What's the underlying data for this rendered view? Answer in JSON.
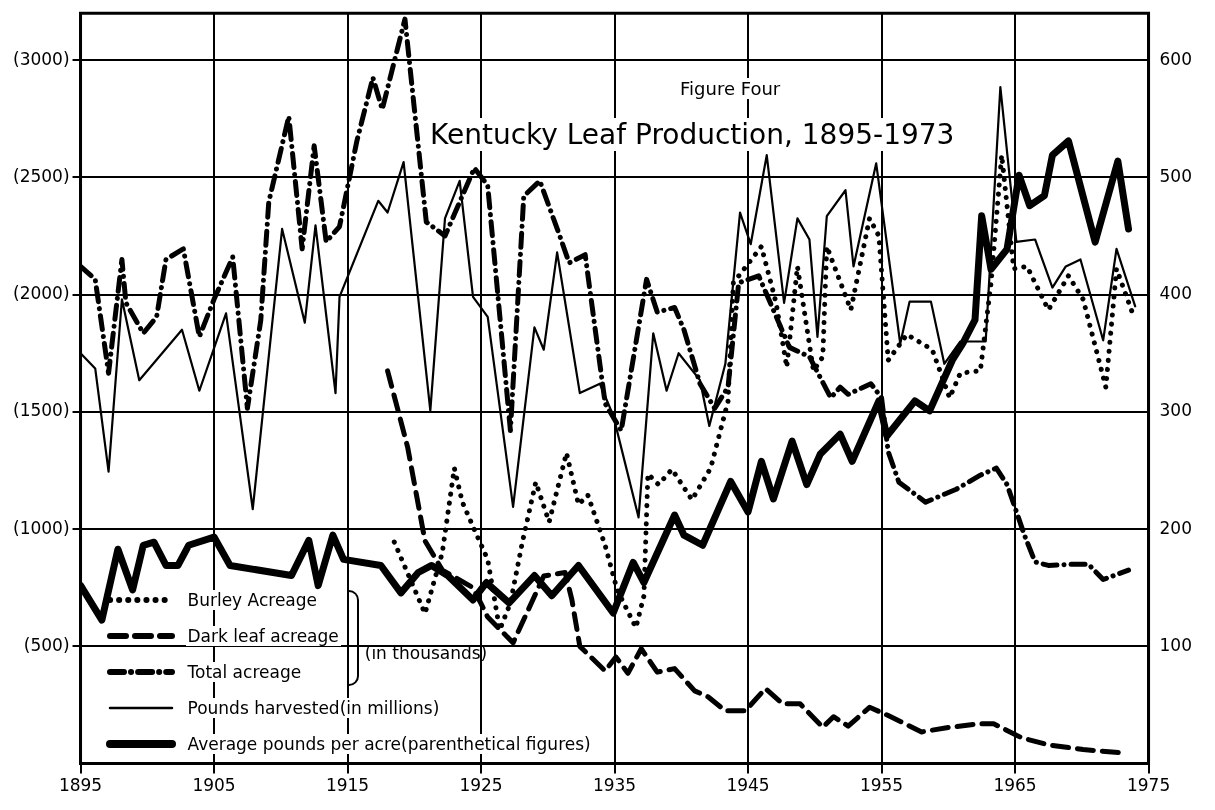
{
  "chart_data": {
    "type": "line",
    "title": "Kentucky Leaf Production, 1895-1973",
    "subtitle": "Figure Four",
    "annotations": [
      "(in thousands)"
    ],
    "xlim": [
      1895,
      1975
    ],
    "xticks": [
      1895,
      1905,
      1915,
      1925,
      1935,
      1945,
      1955,
      1965,
      1975
    ],
    "ylim": [
      0,
      3200
    ],
    "yticks": [
      {
        "value": 500,
        "label": "(500)"
      },
      {
        "value": 1000,
        "label": "(1000)"
      },
      {
        "value": 1500,
        "label": "(1500)"
      },
      {
        "value": 2000,
        "label": "(2000)"
      },
      {
        "value": 2500,
        "label": "(2500)"
      },
      {
        "value": 3000,
        "label": "(3000)"
      }
    ],
    "y2lim": [
      0,
      640
    ],
    "y2ticks": [
      100,
      200,
      300,
      400,
      500,
      600
    ],
    "grid": true,
    "legend": "bottom left",
    "marker": "none",
    "series": [
      {
        "name": "Burley Acreage",
        "color": "#000000",
        "axis": "y2",
        "line_style": "dotted",
        "x": [
          1918.5,
          1920.8,
          1922.1,
          1923.0,
          1923.6,
          1924.6,
          1925.5,
          1926.4,
          1927.2,
          1928.1,
          1929.1,
          1930.1,
          1931.4,
          1932.3,
          1933.0,
          1934.3,
          1935.2,
          1936.6,
          1937.2,
          1937.5,
          1938.3,
          1939.3,
          1940.8,
          1942.2,
          1943.5,
          1943.9,
          1946.0,
          1947.1,
          1947.9,
          1948.7,
          1949.9,
          1950.6,
          1950.9,
          1952.7,
          1954.1,
          1954.8,
          1955.5,
          1956.9,
          1958.8,
          1960.1,
          1960.9,
          1962.4,
          1963.2,
          1964.0,
          1964.9,
          1965.9,
          1967.5,
          1969.0,
          1970.1,
          1971.8,
          1972.6,
          1973.9
        ],
        "values": [
          189,
          128,
          180,
          252,
          223,
          197,
          174,
          114,
          137,
          189,
          240,
          206,
          265,
          221,
          229,
          186,
          148,
          116,
          143,
          247,
          238,
          251,
          225,
          252,
          309,
          410,
          441,
          393,
          338,
          424,
          335,
          347,
          441,
          387,
          465,
          450,
          344,
          366,
          353,
          312,
          333,
          335,
          410,
          519,
          422,
          424,
          387,
          416,
          396,
          321,
          422,
          381
        ]
      },
      {
        "name": "Dark leaf acreage",
        "color": "#000000",
        "axis": "y2",
        "line_style": "dashed",
        "x": [
          1918.0,
          1919.5,
          1920.8,
          1922.1,
          1924.4,
          1925.5,
          1927.4,
          1929.7,
          1931.3,
          1931.8,
          1932.4,
          1934.3,
          1935.1,
          1936.0,
          1937.0,
          1938.2,
          1939.5,
          1941.0,
          1942.0,
          1943.3,
          1944.8,
          1946.3,
          1947.6,
          1948.9,
          1950.6,
          1951.4,
          1952.5,
          1954.1,
          1955.5,
          1958.0,
          1960.1,
          1962.4,
          1963.4,
          1965.5,
          1967.5,
          1970.1,
          1973.2
        ],
        "values": [
          335,
          270,
          190,
          165,
          150,
          125,
          103,
          160,
          163,
          140,
          100,
          79,
          91,
          77,
          98,
          78,
          81,
          62,
          57,
          45,
          45,
          64,
          51,
          51,
          31,
          40,
          32,
          48,
          41,
          27,
          31,
          34,
          34,
          22,
          16,
          12,
          9
        ]
      },
      {
        "name": "Total acreage",
        "color": "#000000",
        "axis": "y2",
        "line_style": "dashdot",
        "x": [
          1895.0,
          1896.1,
          1897.1,
          1898.1,
          1898.4,
          1899.7,
          1900.7,
          1901.4,
          1902.7,
          1903.9,
          1905.0,
          1906.4,
          1907.5,
          1908.5,
          1909.1,
          1910.6,
          1911.6,
          1912.5,
          1913.4,
          1914.4,
          1915.7,
          1916.9,
          1917.6,
          1919.3,
          1920.0,
          1920.9,
          1922.3,
          1924.5,
          1925.5,
          1927.2,
          1928.2,
          1929.4,
          1930.9,
          1931.6,
          1932.8,
          1934.3,
          1935.5,
          1937.4,
          1938.2,
          1939.5,
          1940.2,
          1941.4,
          1942.5,
          1943.5,
          1944.3,
          1945.8,
          1948.1,
          1949.6,
          1951.2,
          1951.9,
          1952.5,
          1954.2,
          1955.0,
          1955.5,
          1956.3,
          1958.3,
          1960.6,
          1962.4,
          1963.6,
          1964.4,
          1965.7,
          1966.5,
          1967.5,
          1969.3,
          1970.5,
          1971.6,
          1973.5
        ],
        "values": [
          424,
          413,
          333,
          430,
          393,
          367,
          381,
          430,
          439,
          364,
          396,
          432,
          303,
          378,
          479,
          552,
          439,
          527,
          445,
          458,
          531,
          585,
          558,
          635,
          559,
          462,
          450,
          508,
          493,
          284,
          484,
          497,
          450,
          427,
          434,
          307,
          284,
          413,
          385,
          389,
          370,
          324,
          303,
          321,
          410,
          416,
          355,
          347,
          312,
          321,
          315,
          324,
          312,
          266,
          240,
          223,
          234,
          246,
          252,
          238,
          195,
          172,
          169,
          170,
          170,
          157,
          165
        ]
      },
      {
        "name": "Pounds harvested(in millions)",
        "color": "#000000",
        "axis": "y2",
        "line_style": "solid",
        "x": [
          1895.0,
          1896.1,
          1897.1,
          1898.1,
          1899.4,
          1902.6,
          1903.9,
          1905.9,
          1907.9,
          1910.1,
          1911.8,
          1912.6,
          1914.1,
          1914.4,
          1917.3,
          1918.0,
          1919.2,
          1921.2,
          1922.3,
          1923.4,
          1924.4,
          1925.5,
          1927.4,
          1929.0,
          1929.7,
          1930.7,
          1932.4,
          1933.9,
          1934.9,
          1936.8,
          1937.9,
          1938.9,
          1939.8,
          1941.4,
          1942.1,
          1943.3,
          1944.4,
          1945.2,
          1946.4,
          1947.7,
          1948.7,
          1949.6,
          1950.2,
          1950.9,
          1952.3,
          1952.9,
          1954.6,
          1956.4,
          1957.1,
          1958.7,
          1959.7,
          1960.9,
          1962.8,
          1963.9,
          1965.1,
          1966.5,
          1967.8,
          1968.8,
          1969.9,
          1971.6,
          1972.6,
          1974.0
        ],
        "values": [
          350,
          337,
          249,
          396,
          327,
          370,
          318,
          384,
          217,
          456,
          376,
          459,
          316,
          398,
          480,
          470,
          513,
          301,
          465,
          497,
          398,
          381,
          219,
          372,
          353,
          436,
          316,
          324,
          297,
          210,
          367,
          318,
          350,
          327,
          288,
          341,
          470,
          443,
          519,
          393,
          465,
          447,
          364,
          467,
          489,
          424,
          512,
          358,
          394,
          394,
          341,
          360,
          360,
          577,
          445,
          447,
          406,
          424,
          430,
          361,
          439,
          390
        ]
      },
      {
        "name": "Average pounds per acre(parenthetical figures)",
        "color": "#000000",
        "axis": "y",
        "line_style": "solid",
        "x": [
          1895.0,
          1896.6,
          1897.8,
          1898.9,
          1899.7,
          1900.5,
          1901.4,
          1902.3,
          1903.1,
          1905.0,
          1906.2,
          1910.8,
          1912.1,
          1912.8,
          1913.9,
          1914.7,
          1917.5,
          1919.0,
          1920.3,
          1921.3,
          1922.5,
          1924.4,
          1925.4,
          1927.1,
          1929.0,
          1930.3,
          1932.3,
          1934.9,
          1936.4,
          1937.2,
          1939.5,
          1940.2,
          1941.6,
          1943.7,
          1945.0,
          1946.0,
          1946.9,
          1948.3,
          1949.4,
          1950.4,
          1951.9,
          1952.8,
          1954.8,
          1955.4,
          1957.5,
          1958.6,
          1960.3,
          1961.1,
          1962.0,
          1962.5,
          1963.2,
          1964.4,
          1965.3,
          1966.1,
          1967.2,
          1967.8,
          1969.0,
          1971.0,
          1972.7,
          1973.5
        ],
        "values": [
          760,
          612,
          914,
          741,
          931,
          944,
          845,
          845,
          931,
          966,
          845,
          802,
          952,
          759,
          974,
          871,
          845,
          728,
          815,
          845,
          802,
          698,
          772,
          685,
          802,
          716,
          845,
          642,
          858,
          772,
          1060,
          974,
          931,
          1203,
          1073,
          1289,
          1129,
          1375,
          1190,
          1319,
          1405,
          1289,
          1547,
          1397,
          1547,
          1504,
          1720,
          1793,
          1892,
          2336,
          2108,
          2194,
          2509,
          2379,
          2422,
          2595,
          2655,
          2224,
          2569,
          2280
        ]
      }
    ]
  }
}
